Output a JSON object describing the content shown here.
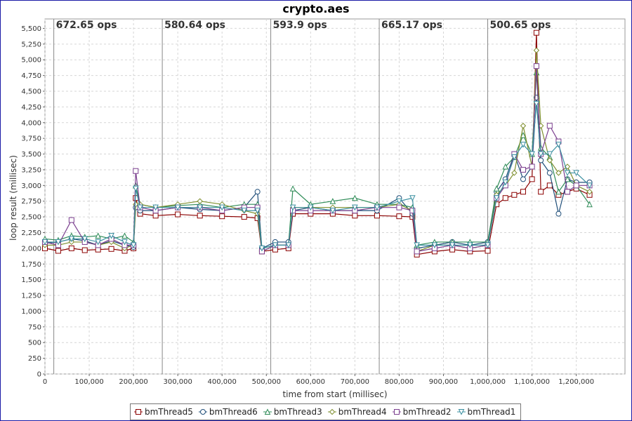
{
  "chart_data": {
    "type": "line",
    "title": "crypto.aes",
    "xlabel": "time from start (millisec)",
    "ylabel": "loop result (millisec)",
    "xlim": [
      0,
      1310000
    ],
    "ylim": [
      0,
      5650
    ],
    "x_ticks": [
      0,
      100000,
      200000,
      300000,
      400000,
      500000,
      600000,
      700000,
      800000,
      900000,
      1000000,
      1100000,
      1200000
    ],
    "x_tick_labels": [
      "0",
      "100,000",
      "200,000",
      "300,000",
      "400,000",
      "500,000",
      "600,000",
      "700,000",
      "800,000",
      "900,000",
      "1,000,000",
      "1,100,000",
      "1,200,000"
    ],
    "y_ticks": [
      0,
      250,
      500,
      750,
      1000,
      1250,
      1500,
      1750,
      2000,
      2250,
      2500,
      2750,
      3000,
      3250,
      3500,
      3750,
      4000,
      4250,
      4500,
      4750,
      5000,
      5250,
      5500
    ],
    "y_tick_labels": [
      "0",
      "250",
      "500",
      "750",
      "1,000",
      "1,250",
      "1,500",
      "1,750",
      "2,000",
      "2,250",
      "2,500",
      "2,750",
      "3,000",
      "3,250",
      "3,500",
      "3,750",
      "4,000",
      "4,250",
      "4,500",
      "4,750",
      "5,000",
      "5,250",
      "5,500"
    ],
    "grid": true,
    "legend_position": "bottom",
    "phase_markers": [
      {
        "x": 20000,
        "label": "672.65 ops"
      },
      {
        "x": 265000,
        "label": "580.64 ops"
      },
      {
        "x": 510000,
        "label": "593.9 ops"
      },
      {
        "x": 755000,
        "label": "665.17 ops"
      },
      {
        "x": 1000000,
        "label": "500.65 ops"
      }
    ],
    "series": [
      {
        "name": "bmThread5",
        "marker": "square",
        "color": "#8b0000",
        "x": [
          0,
          30000,
          60000,
          90000,
          120000,
          150000,
          180000,
          200000,
          205000,
          215000,
          250000,
          300000,
          350000,
          400000,
          450000,
          480000,
          490000,
          520000,
          550000,
          560000,
          600000,
          650000,
          700000,
          750000,
          800000,
          830000,
          840000,
          880000,
          920000,
          960000,
          1000000,
          1020000,
          1040000,
          1060000,
          1080000,
          1100000,
          1110000,
          1120000,
          1140000,
          1160000,
          1180000,
          1200000,
          1230000
        ],
        "y": [
          2000,
          1960,
          2000,
          1970,
          1980,
          1990,
          1960,
          2000,
          2800,
          2550,
          2520,
          2540,
          2520,
          2510,
          2500,
          2480,
          1950,
          1980,
          2000,
          2550,
          2550,
          2550,
          2520,
          2520,
          2510,
          2500,
          1900,
          1950,
          1980,
          1950,
          1960,
          2700,
          2800,
          2850,
          2900,
          3100,
          5430,
          2900,
          3000,
          2850,
          2900,
          2950,
          2850
        ]
      },
      {
        "name": "bmThread6",
        "marker": "circle",
        "color": "#1f4e79",
        "x": [
          0,
          30000,
          60000,
          90000,
          120000,
          150000,
          180000,
          200000,
          205000,
          215000,
          250000,
          300000,
          350000,
          400000,
          450000,
          480000,
          490000,
          520000,
          550000,
          560000,
          600000,
          650000,
          700000,
          750000,
          800000,
          830000,
          840000,
          880000,
          920000,
          960000,
          1000000,
          1020000,
          1040000,
          1060000,
          1080000,
          1100000,
          1110000,
          1120000,
          1140000,
          1160000,
          1180000,
          1200000,
          1230000
        ],
        "y": [
          2080,
          2100,
          2150,
          2120,
          2050,
          2120,
          2050,
          2020,
          2650,
          2600,
          2600,
          2650,
          2620,
          2600,
          2650,
          2900,
          2000,
          2100,
          2100,
          2600,
          2650,
          2600,
          2600,
          2600,
          2800,
          2550,
          2000,
          2050,
          2100,
          2050,
          2100,
          2900,
          3100,
          3500,
          3100,
          3300,
          4400,
          3400,
          3200,
          2550,
          3100,
          3050,
          3050
        ]
      },
      {
        "name": "bmThread3",
        "marker": "triangle-up",
        "color": "#2e8b57",
        "x": [
          0,
          30000,
          60000,
          90000,
          120000,
          150000,
          180000,
          200000,
          205000,
          215000,
          250000,
          300000,
          350000,
          400000,
          450000,
          480000,
          490000,
          520000,
          550000,
          560000,
          600000,
          650000,
          700000,
          750000,
          800000,
          830000,
          840000,
          880000,
          920000,
          960000,
          1000000,
          1020000,
          1040000,
          1060000,
          1080000,
          1100000,
          1110000,
          1120000,
          1140000,
          1160000,
          1180000,
          1200000,
          1230000
        ],
        "y": [
          2150,
          2130,
          2200,
          2180,
          2200,
          2150,
          2200,
          2100,
          3000,
          2700,
          2650,
          2680,
          2700,
          2650,
          2700,
          2700,
          2000,
          2050,
          2050,
          2950,
          2700,
          2750,
          2800,
          2700,
          2700,
          2650,
          2050,
          2100,
          2100,
          2100,
          2100,
          2950,
          3300,
          3450,
          3800,
          3500,
          4800,
          3600,
          3450,
          2900,
          3100,
          3000,
          2700
        ]
      },
      {
        "name": "bmThread4",
        "marker": "diamond",
        "color": "#7f8f2f",
        "x": [
          0,
          30000,
          60000,
          90000,
          120000,
          150000,
          180000,
          200000,
          205000,
          215000,
          250000,
          300000,
          350000,
          400000,
          450000,
          480000,
          490000,
          520000,
          550000,
          560000,
          600000,
          650000,
          700000,
          750000,
          800000,
          830000,
          840000,
          880000,
          920000,
          960000,
          1000000,
          1020000,
          1040000,
          1060000,
          1080000,
          1100000,
          1110000,
          1120000,
          1140000,
          1160000,
          1180000,
          1200000,
          1230000
        ],
        "y": [
          2050,
          2050,
          2100,
          2100,
          2050,
          2100,
          2000,
          2050,
          2700,
          2700,
          2650,
          2700,
          2750,
          2700,
          2600,
          2550,
          1950,
          2050,
          2050,
          2650,
          2650,
          2650,
          2650,
          2650,
          2700,
          2600,
          1950,
          2050,
          2050,
          2000,
          2050,
          2850,
          3000,
          3200,
          3950,
          3300,
          5150,
          3950,
          3400,
          3200,
          3300,
          3000,
          2900
        ]
      },
      {
        "name": "bmThread2",
        "marker": "square",
        "color": "#7b3f8f",
        "x": [
          0,
          30000,
          60000,
          90000,
          120000,
          150000,
          180000,
          200000,
          205000,
          215000,
          250000,
          300000,
          350000,
          400000,
          450000,
          480000,
          490000,
          520000,
          550000,
          560000,
          600000,
          650000,
          700000,
          750000,
          800000,
          830000,
          840000,
          880000,
          920000,
          960000,
          1000000,
          1020000,
          1040000,
          1060000,
          1080000,
          1100000,
          1110000,
          1120000,
          1140000,
          1160000,
          1180000,
          1200000,
          1230000
        ],
        "y": [
          2100,
          2050,
          2450,
          2100,
          2050,
          2150,
          2050,
          2050,
          3230,
          2650,
          2600,
          2650,
          2650,
          2600,
          2650,
          2650,
          1950,
          2050,
          2050,
          2600,
          2600,
          2600,
          2600,
          2650,
          2650,
          2600,
          1950,
          2000,
          2050,
          2000,
          2050,
          2800,
          3000,
          3500,
          3250,
          3300,
          4900,
          3500,
          3950,
          3700,
          2900,
          3000,
          3000
        ]
      },
      {
        "name": "bmThread1",
        "marker": "triangle-down",
        "color": "#3a8fa0",
        "x": [
          0,
          30000,
          60000,
          90000,
          120000,
          150000,
          180000,
          200000,
          205000,
          215000,
          250000,
          300000,
          350000,
          400000,
          450000,
          480000,
          490000,
          520000,
          550000,
          560000,
          600000,
          650000,
          700000,
          750000,
          800000,
          830000,
          840000,
          880000,
          920000,
          960000,
          1000000,
          1020000,
          1040000,
          1060000,
          1080000,
          1100000,
          1110000,
          1120000,
          1140000,
          1160000,
          1180000,
          1200000,
          1230000
        ],
        "y": [
          2100,
          2100,
          2150,
          2150,
          2100,
          2200,
          2100,
          2050,
          2950,
          2650,
          2650,
          2650,
          2650,
          2650,
          2600,
          2600,
          2000,
          2050,
          2050,
          2650,
          2650,
          2600,
          2650,
          2650,
          2750,
          2800,
          2050,
          2050,
          2050,
          2050,
          2050,
          2800,
          3050,
          3450,
          3650,
          3500,
          4300,
          3500,
          3500,
          3650,
          3200,
          3200,
          3000
        ]
      }
    ]
  }
}
